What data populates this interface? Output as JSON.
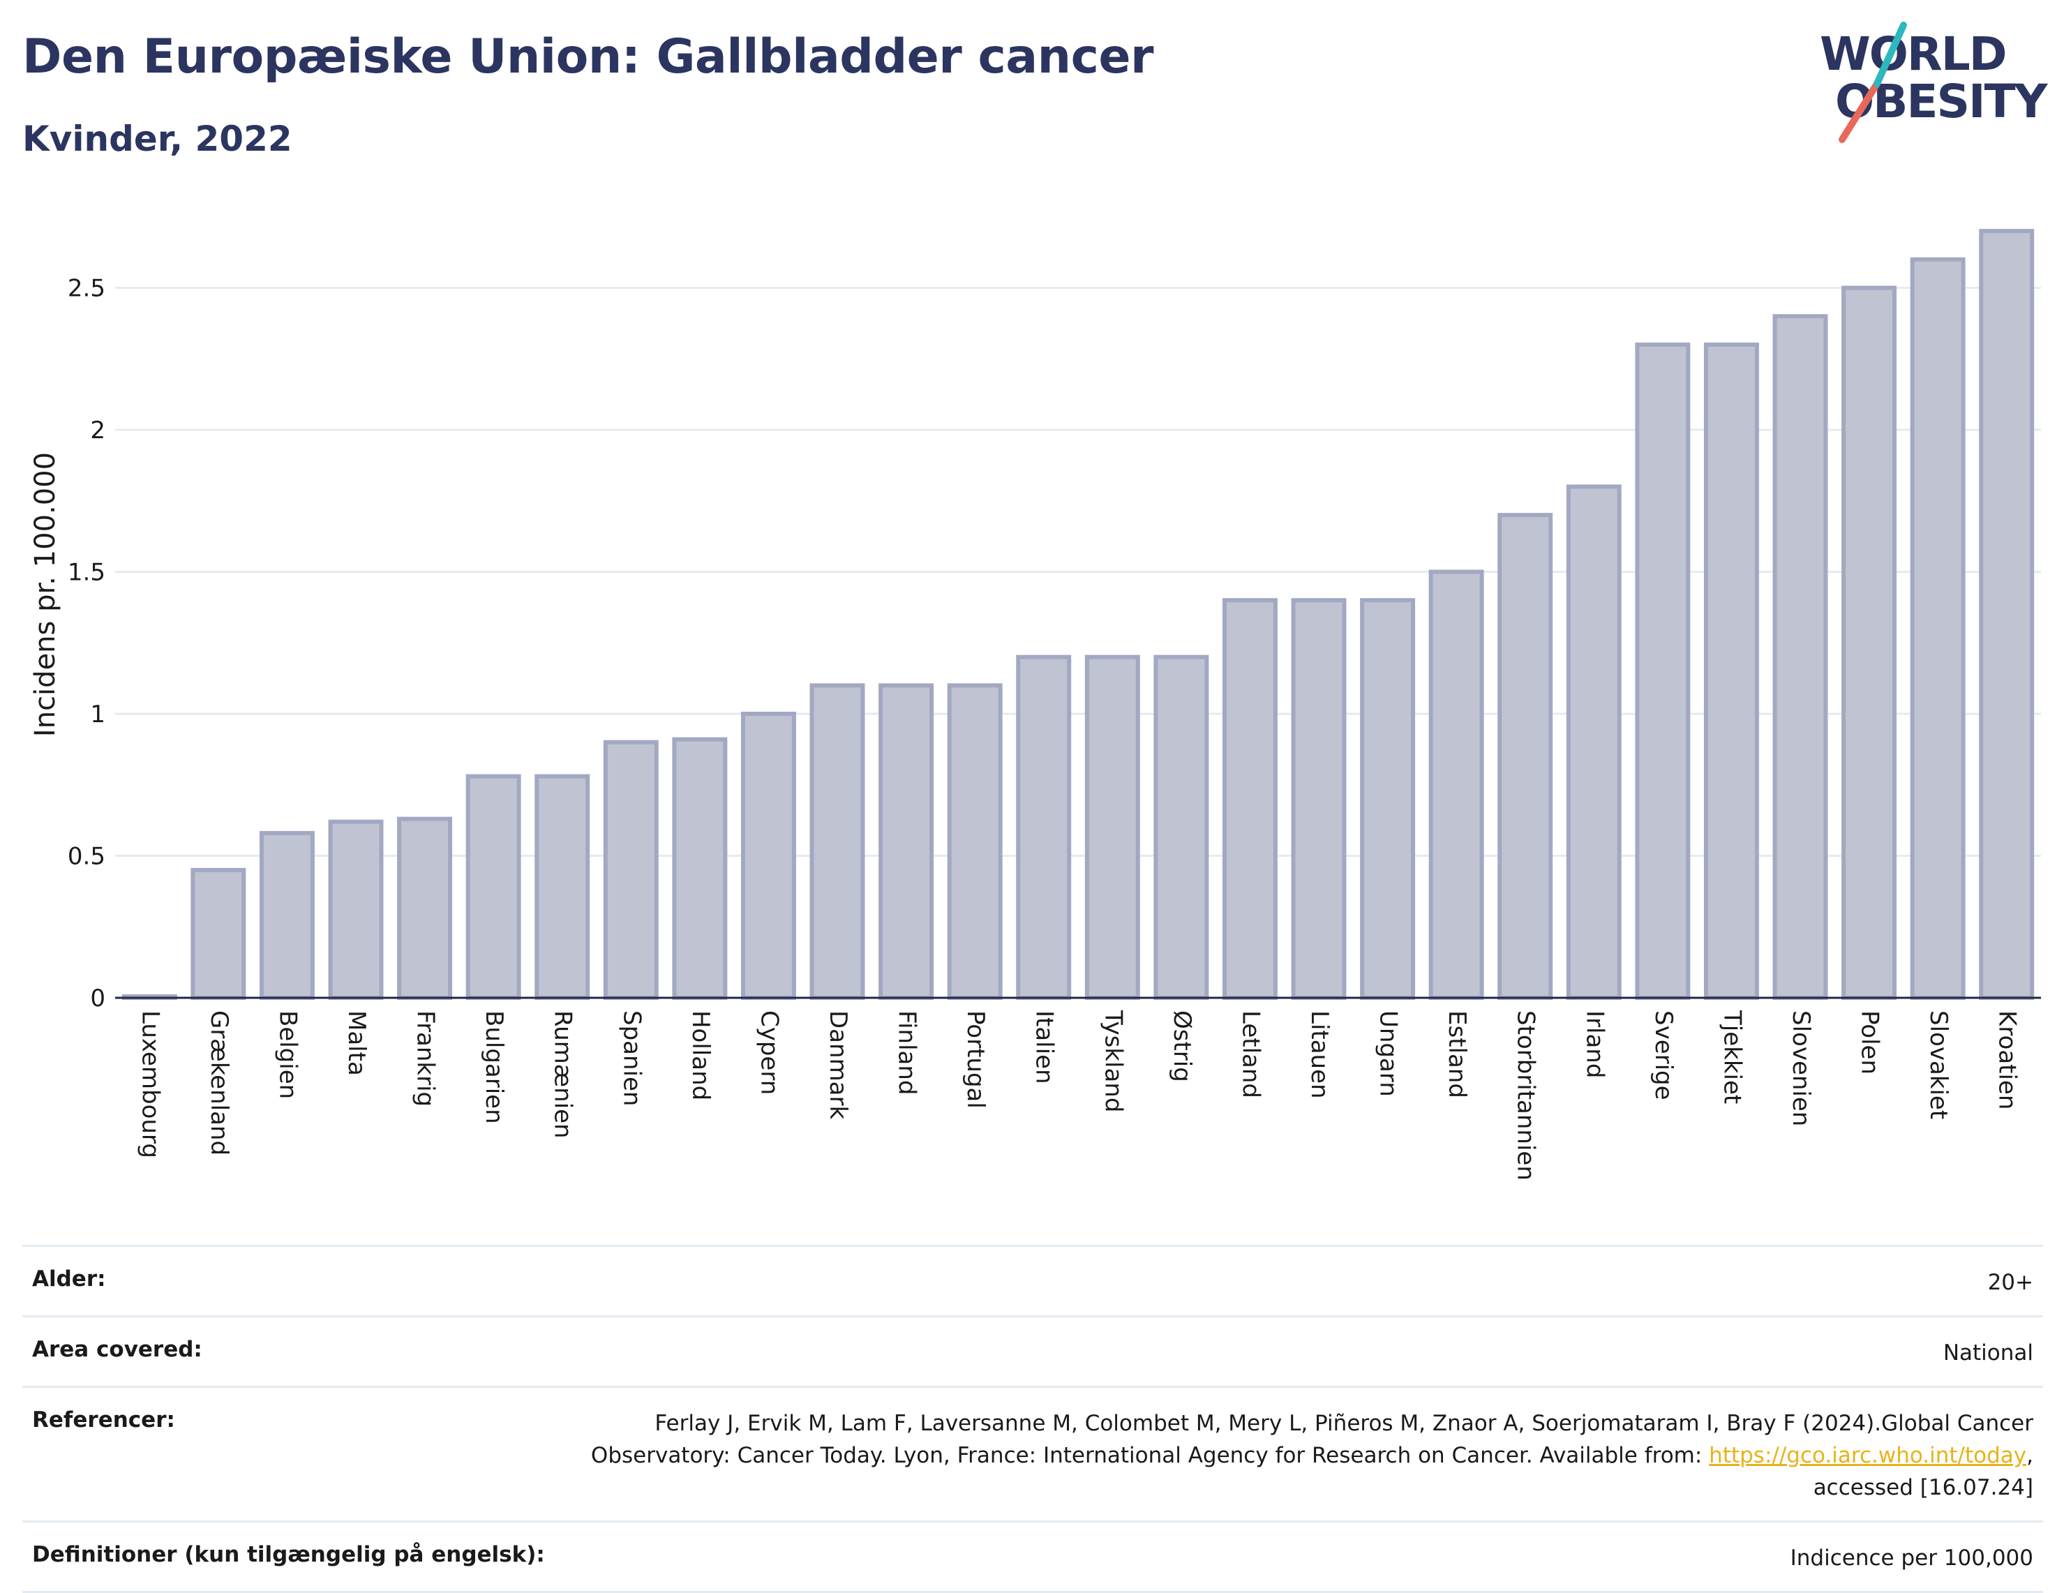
{
  "header": {
    "title": "Den Europæiske Union: Gallbladder cancer",
    "subtitle": "Kvinder, 2022"
  },
  "logo": {
    "line1": "WORLD",
    "line2": "OBESITY",
    "colors": {
      "text": "#2b3560",
      "slash_red": "#e8685a",
      "slash_teal": "#2cb8bd"
    }
  },
  "chart_data": {
    "type": "bar",
    "ylabel": "Incidens pr. 100.000",
    "ylim": [
      0,
      2.78
    ],
    "yticks": [
      0,
      0.5,
      1,
      1.5,
      2,
      2.5
    ],
    "ytick_labels": [
      "0",
      "0.5",
      "1",
      "1.5",
      "2",
      "2.5"
    ],
    "grid": true,
    "bar_fill": "#bfc3d2",
    "bar_stroke": "#a3a8c2",
    "categories": [
      "Luxembourg",
      "Grækenland",
      "Belgien",
      "Malta",
      "Frankrig",
      "Bulgarien",
      "Rumænien",
      "Spanien",
      "Holland",
      "Cypern",
      "Danmark",
      "Finland",
      "Portugal",
      "Italien",
      "Tyskland",
      "Østrig",
      "Letland",
      "Litauen",
      "Ungarn",
      "Estland",
      "Storbritannien",
      "Irland",
      "Sverige",
      "Tjekkiet",
      "Slovenien",
      "Polen",
      "Slovakiet",
      "Kroatien"
    ],
    "values": [
      0.0,
      0.45,
      0.58,
      0.62,
      0.63,
      0.78,
      0.78,
      0.9,
      0.91,
      1.0,
      1.1,
      1.1,
      1.1,
      1.2,
      1.2,
      1.2,
      1.4,
      1.4,
      1.4,
      1.5,
      1.7,
      1.8,
      2.3,
      2.3,
      2.4,
      2.5,
      2.6,
      2.7
    ]
  },
  "info": {
    "age_label": "Alder:",
    "age_value": "20+",
    "area_label": "Area covered:",
    "area_value": "National",
    "ref_label": "Referencer:",
    "ref_line1": "Ferlay J, Ervik M, Lam F, Laversanne M, Colombet M, Mery L, Piñeros M, Znaor A, Soerjomataram I, Bray F (2024).Global Cancer",
    "ref_line2_pre": "Observatory: Cancer Today. Lyon, France: International Agency for Research on Cancer. Available from: ",
    "ref_link": "https://gco.iarc.who.int/today",
    "ref_line2_post": ",",
    "ref_line3": "accessed [16.07.24]",
    "def_label": "Definitioner (kun tilgængelig på engelsk):",
    "def_value": "Indicence per 100,000"
  }
}
